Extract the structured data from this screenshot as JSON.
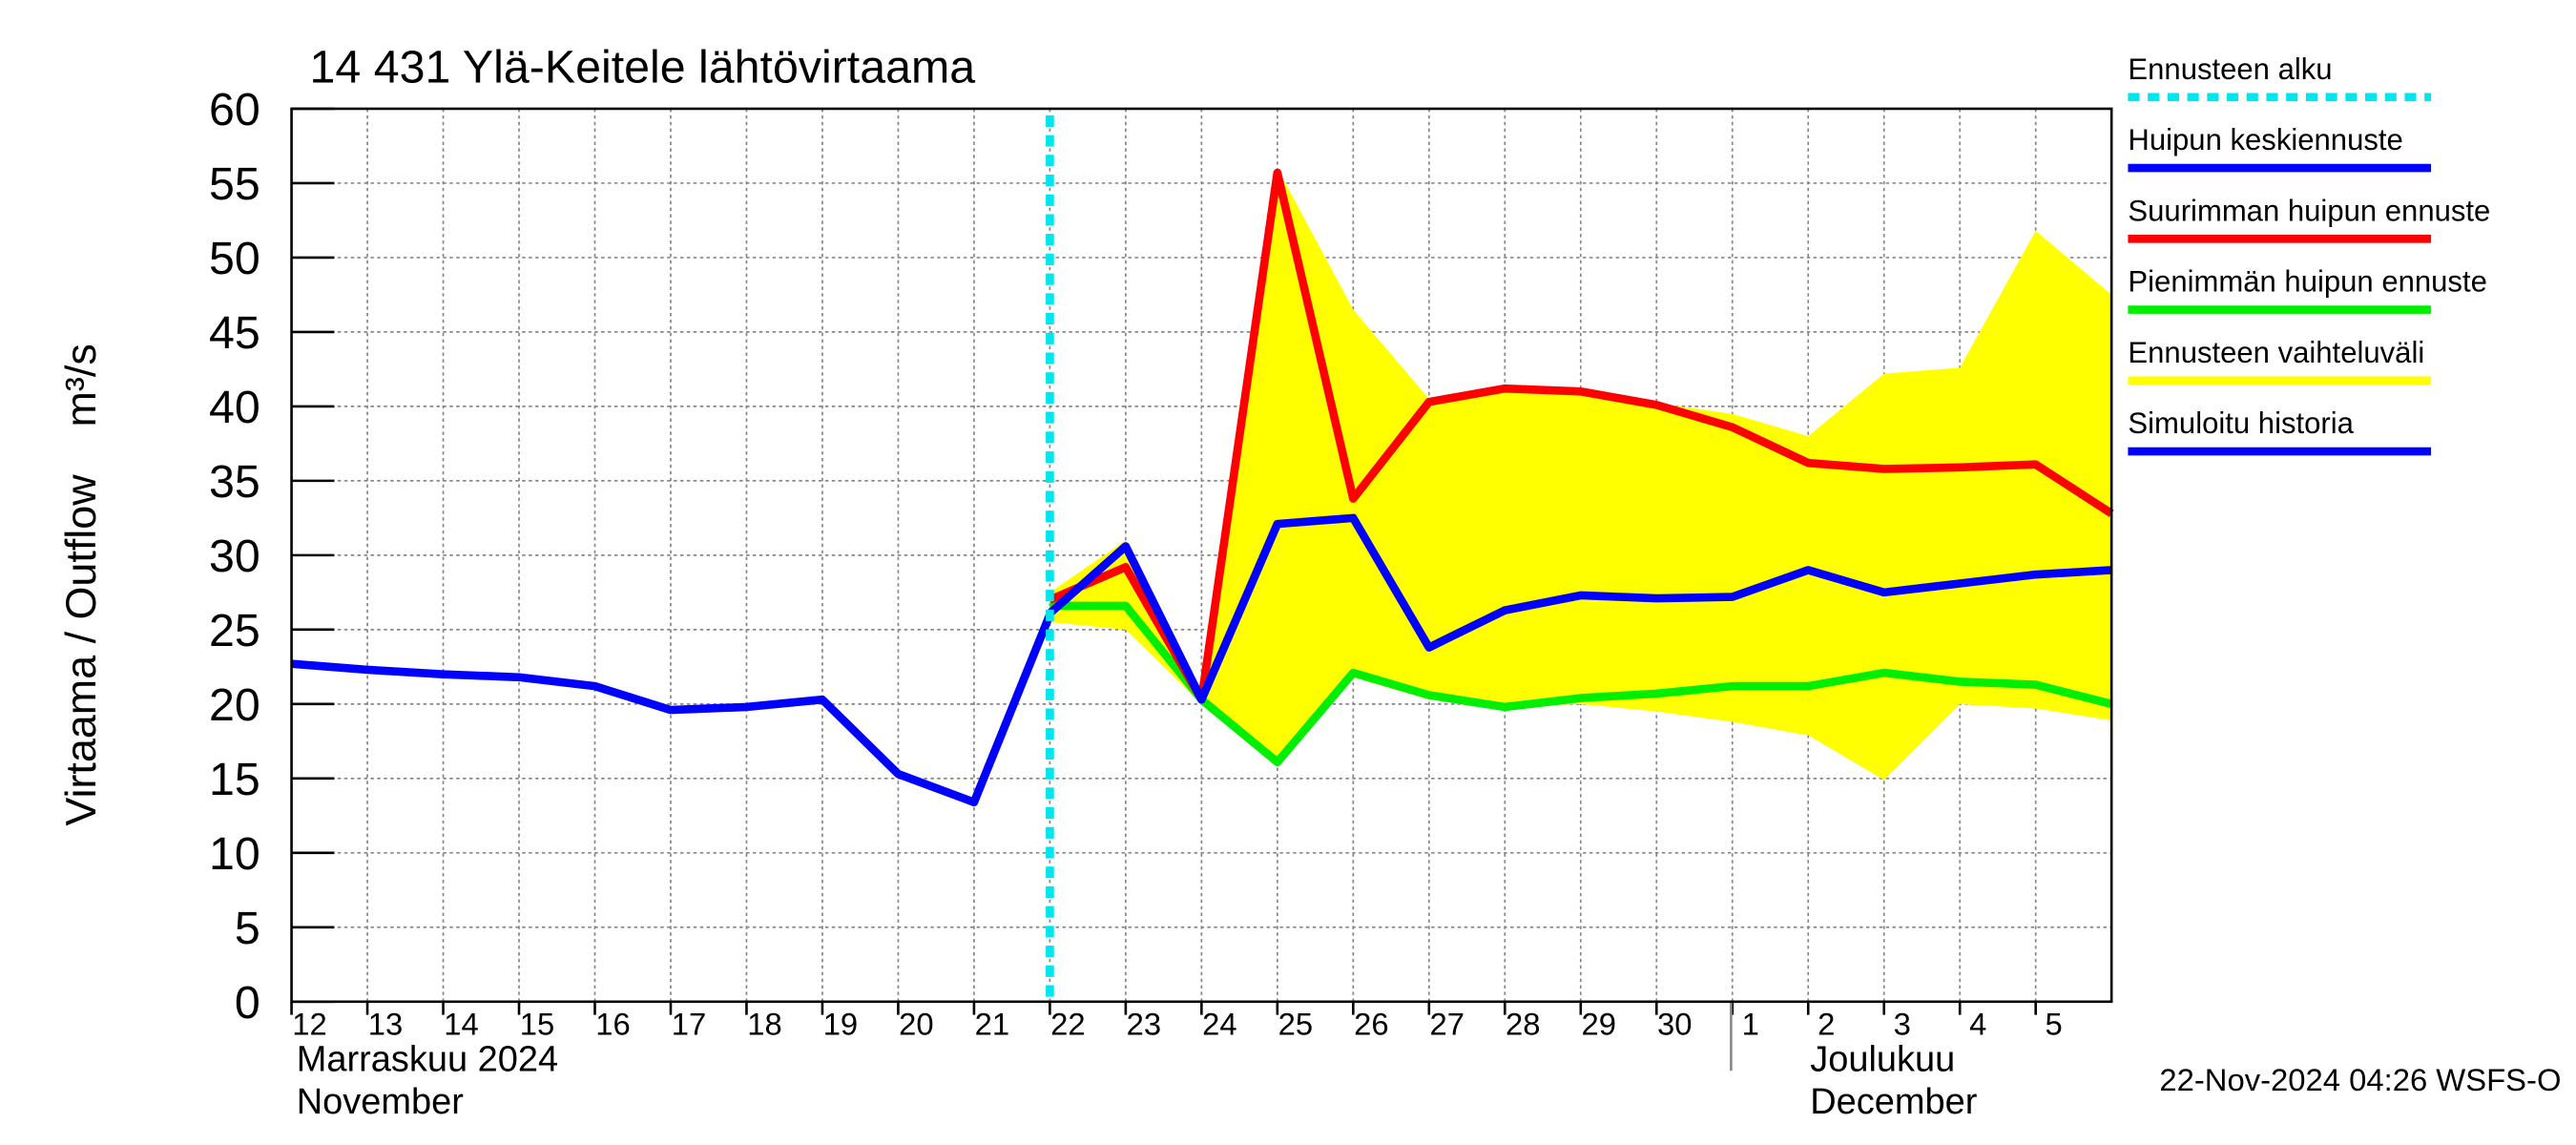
{
  "chart_data": {
    "type": "line",
    "title": "14 431 Ylä-Keitele lähtövirtaama",
    "y_label": "Virtaama / Outflow    m³/s",
    "x": [
      "2024-11-12",
      "2024-11-13",
      "2024-11-14",
      "2024-11-15",
      "2024-11-16",
      "2024-11-17",
      "2024-11-18",
      "2024-11-19",
      "2024-11-20",
      "2024-11-21",
      "2024-11-22",
      "2024-11-23",
      "2024-11-24",
      "2024-11-25",
      "2024-11-26",
      "2024-11-27",
      "2024-11-28",
      "2024-11-29",
      "2024-11-30",
      "2024-12-01",
      "2024-12-02",
      "2024-12-03",
      "2024-12-04",
      "2024-12-05",
      "2024-12-06"
    ],
    "xlim": [
      "2024-11-12",
      "2024-12-06"
    ],
    "xticks": [
      {
        "value": "2024-11-12",
        "label": "12"
      },
      {
        "value": "2024-11-13",
        "label": "13"
      },
      {
        "value": "2024-11-14",
        "label": "14"
      },
      {
        "value": "2024-11-15",
        "label": "15"
      },
      {
        "value": "2024-11-16",
        "label": "16"
      },
      {
        "value": "2024-11-17",
        "label": "17"
      },
      {
        "value": "2024-11-18",
        "label": "18"
      },
      {
        "value": "2024-11-19",
        "label": "19"
      },
      {
        "value": "2024-11-20",
        "label": "20"
      },
      {
        "value": "2024-11-21",
        "label": "21"
      },
      {
        "value": "2024-11-22",
        "label": "22"
      },
      {
        "value": "2024-11-23",
        "label": "23"
      },
      {
        "value": "2024-11-24",
        "label": "24"
      },
      {
        "value": "2024-11-25",
        "label": "25"
      },
      {
        "value": "2024-11-26",
        "label": "26"
      },
      {
        "value": "2024-11-27",
        "label": "27"
      },
      {
        "value": "2024-11-28",
        "label": "28"
      },
      {
        "value": "2024-11-29",
        "label": "29"
      },
      {
        "value": "2024-11-30",
        "label": "30"
      },
      {
        "value": "2024-12-01",
        "label": "1"
      },
      {
        "value": "2024-12-02",
        "label": "2"
      },
      {
        "value": "2024-12-03",
        "label": "3"
      },
      {
        "value": "2024-12-04",
        "label": "4"
      },
      {
        "value": "2024-12-05",
        "label": "5"
      }
    ],
    "ylim": [
      0,
      60
    ],
    "yticks": [
      0,
      5,
      10,
      15,
      20,
      25,
      30,
      35,
      40,
      45,
      50,
      55,
      60
    ],
    "grid": true,
    "months": [
      {
        "label": "Marraskuu 2024",
        "label_en": "November"
      },
      {
        "label": "Joulukuu",
        "label_en": "December"
      }
    ],
    "forecast_start": {
      "name": "Ennusteen alku",
      "x": "2024-11-22",
      "color": "#00e5ee"
    },
    "series": [
      {
        "name": "Huipun keskiennuste",
        "color": "#0000ff",
        "values": [
          null,
          null,
          null,
          null,
          null,
          null,
          null,
          null,
          null,
          null,
          26.1,
          30.6,
          20.3,
          32.1,
          32.5,
          23.8,
          26.3,
          27.3,
          27.1,
          27.2,
          29.0,
          27.5,
          28.1,
          28.7,
          29.0
        ]
      },
      {
        "name": "Suurimman huipun ennuste",
        "color": "#ff0000",
        "values": [
          null,
          null,
          null,
          null,
          null,
          null,
          null,
          null,
          null,
          null,
          27.0,
          29.2,
          20.3,
          55.7,
          33.8,
          40.3,
          41.2,
          41.0,
          40.1,
          38.6,
          36.2,
          35.8,
          35.9,
          36.1,
          32.8
        ]
      },
      {
        "name": "Pienimmän huipun ennuste",
        "color": "#00ee00",
        "values": [
          null,
          null,
          null,
          null,
          null,
          null,
          null,
          null,
          null,
          null,
          26.6,
          26.6,
          20.3,
          16.1,
          22.1,
          20.6,
          19.8,
          20.4,
          20.7,
          21.2,
          21.2,
          22.1,
          21.5,
          21.3,
          20.0
        ]
      },
      {
        "name": "Ennusteen vaihteluväli",
        "color": "#ffff00",
        "values": [
          null,
          null,
          null,
          null,
          null,
          null,
          null,
          null,
          null,
          null,
          27.5,
          31.0,
          20.5,
          56.0,
          46.5,
          40.5,
          41.3,
          41.1,
          40.2,
          39.5,
          38.0,
          42.2,
          42.6,
          51.8,
          47.5
        ],
        "lower": [
          null,
          null,
          null,
          null,
          null,
          null,
          null,
          null,
          null,
          null,
          25.5,
          25.0,
          20.0,
          16.0,
          21.8,
          20.3,
          19.8,
          20.0,
          19.5,
          18.8,
          17.9,
          14.9,
          20.0,
          19.7,
          18.9
        ]
      },
      {
        "name": "Simuloitu historia",
        "color": "#0000ff",
        "values": [
          22.7,
          22.3,
          22.0,
          21.8,
          21.2,
          19.6,
          19.8,
          20.3,
          15.3,
          13.4,
          26.0,
          null,
          null,
          null,
          null,
          null,
          null,
          null,
          null,
          null,
          null,
          null,
          null,
          null,
          null
        ]
      }
    ],
    "footer": "22-Nov-2024 04:26 WSFS-O"
  }
}
